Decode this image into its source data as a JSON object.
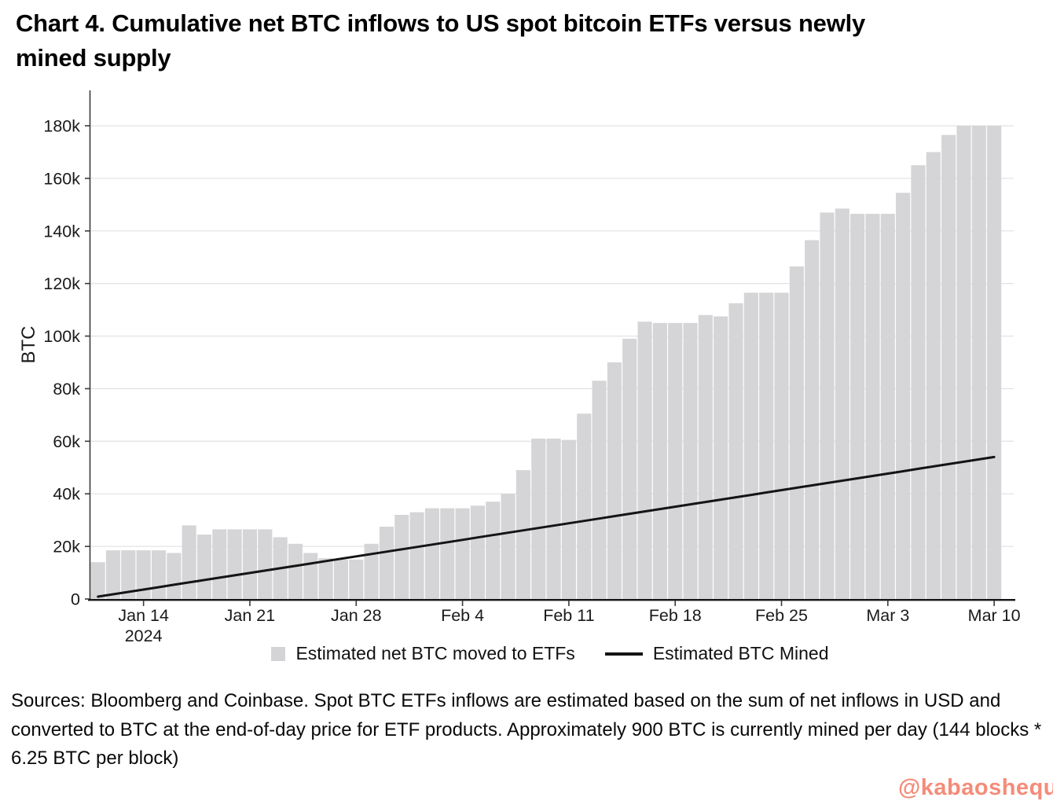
{
  "title": {
    "line1": "Chart 4. Cumulative net BTC inflows to US spot bitcoin ETFs versus newly",
    "line2": "mined supply"
  },
  "legend": {
    "bars_label": "Estimated net BTC moved to ETFs",
    "bars_color": "#d4d4d6",
    "line_label": "Estimated BTC Mined",
    "line_color": "#141414"
  },
  "footer": "Sources: Bloomberg and Coinbase. Spot BTC ETFs inflows are estimated based on the sum of net inflows in USD and converted to BTC at the end-of-day price for ETF products. Approximately 900 BTC is currently mined per day (144 blocks * 6.25 BTC per block)",
  "watermark": {
    "text": "@kabaoshequ",
    "color": "#f58b78"
  },
  "chart_data": {
    "type": "bar",
    "title": "Chart 4. Cumulative net BTC inflows to US spot bitcoin ETFs versus newly mined supply",
    "xlabel": "",
    "ylabel": "BTC",
    "ylim": [
      0,
      193000
    ],
    "grid": "horizontal",
    "legend_position": "bottom-center",
    "y_ticks": [
      {
        "value": 0,
        "label": "0"
      },
      {
        "value": 20000,
        "label": "20k"
      },
      {
        "value": 40000,
        "label": "40k"
      },
      {
        "value": 60000,
        "label": "60k"
      },
      {
        "value": 80000,
        "label": "80k"
      },
      {
        "value": 100000,
        "label": "100k"
      },
      {
        "value": 120000,
        "label": "120k"
      },
      {
        "value": 140000,
        "label": "140k"
      },
      {
        "value": 160000,
        "label": "160k"
      },
      {
        "value": 180000,
        "label": "180k"
      }
    ],
    "x_ticks": [
      {
        "day_index": 3,
        "label": "Jan 14",
        "sublabel": "2024"
      },
      {
        "day_index": 10,
        "label": "Jan 21"
      },
      {
        "day_index": 17,
        "label": "Jan 28"
      },
      {
        "day_index": 24,
        "label": "Feb 4"
      },
      {
        "day_index": 31,
        "label": "Feb 11"
      },
      {
        "day_index": 38,
        "label": "Feb 18"
      },
      {
        "day_index": 45,
        "label": "Feb 25"
      },
      {
        "day_index": 52,
        "label": "Mar 3"
      },
      {
        "day_index": 59,
        "label": "Mar 10"
      }
    ],
    "categories": [
      "Jan 11",
      "Jan 12",
      "Jan 13",
      "Jan 14",
      "Jan 15",
      "Jan 16",
      "Jan 17",
      "Jan 18",
      "Jan 19",
      "Jan 20",
      "Jan 21",
      "Jan 22",
      "Jan 23",
      "Jan 24",
      "Jan 25",
      "Jan 26",
      "Jan 27",
      "Jan 28",
      "Jan 29",
      "Jan 30",
      "Jan 31",
      "Feb 1",
      "Feb 2",
      "Feb 3",
      "Feb 4",
      "Feb 5",
      "Feb 6",
      "Feb 7",
      "Feb 8",
      "Feb 9",
      "Feb 10",
      "Feb 11",
      "Feb 12",
      "Feb 13",
      "Feb 14",
      "Feb 15",
      "Feb 16",
      "Feb 17",
      "Feb 18",
      "Feb 19",
      "Feb 20",
      "Feb 21",
      "Feb 22",
      "Feb 23",
      "Feb 24",
      "Feb 25",
      "Feb 26",
      "Feb 27",
      "Feb 28",
      "Feb 29",
      "Mar 1",
      "Mar 2",
      "Mar 3",
      "Mar 4",
      "Mar 5",
      "Mar 6",
      "Mar 7",
      "Mar 8",
      "Mar 9",
      "Mar 10"
    ],
    "series": [
      {
        "name": "Estimated net BTC moved to ETFs",
        "type": "bar",
        "color": "#d5d5d7",
        "unit": "BTC",
        "values": [
          14000,
          18500,
          18500,
          18500,
          18500,
          17500,
          28000,
          24500,
          26500,
          26500,
          26500,
          26500,
          23500,
          21000,
          17500,
          15500,
          15000,
          15000,
          21000,
          27500,
          32000,
          33000,
          34500,
          34500,
          34500,
          35500,
          37000,
          40000,
          49000,
          61000,
          61000,
          60500,
          70500,
          83000,
          90000,
          99000,
          105500,
          105000,
          105000,
          105000,
          108000,
          107500,
          112500,
          116500,
          116500,
          116500,
          126500,
          136500,
          147000,
          148500,
          146500,
          146500,
          146500,
          154500,
          165000,
          170000,
          176500,
          180000,
          180000,
          180000
        ]
      },
      {
        "name": "Estimated BTC Mined",
        "type": "line",
        "color": "#141414",
        "unit": "BTC",
        "start_value": 900,
        "daily_increment": 900,
        "end_value": 54000
      }
    ]
  }
}
